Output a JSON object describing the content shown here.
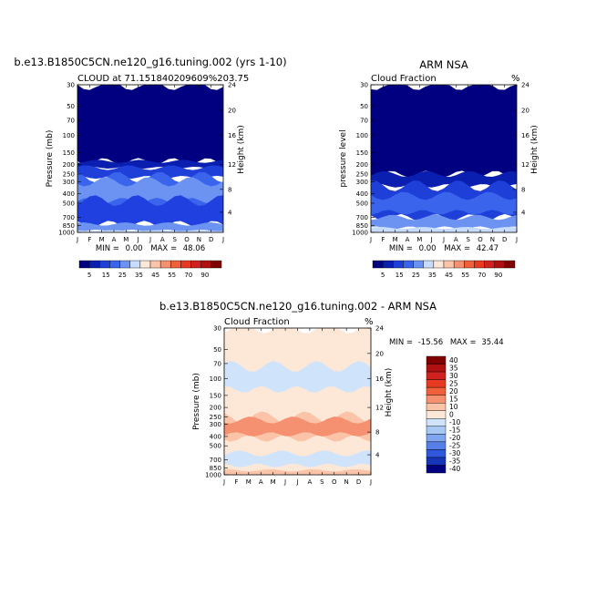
{
  "chart_data": [
    {
      "type": "heatmap",
      "title": "b.e13.B1850C5CN.ne120_g16.tuning.002 (yrs 1-10)",
      "subtitle": "CLOUD at 71.151840209609%203.75",
      "units": "",
      "xlabel": "",
      "ylabel": "Pressure (mb)",
      "ylabel_right": "Height (km)",
      "months": [
        "J",
        "F",
        "M",
        "A",
        "M",
        "J",
        "J",
        "A",
        "S",
        "O",
        "N",
        "D",
        "J"
      ],
      "pressure_ticks": [
        "30",
        "50",
        "70",
        "100",
        "150",
        "200",
        "250",
        "300",
        "400",
        "500",
        "700",
        "850",
        "1000"
      ],
      "height_ticks": [
        "24",
        "20",
        "16",
        "12",
        "8",
        "4"
      ],
      "stats": {
        "min_label": "MIN =",
        "min": "0.00",
        "max_label": "MAX =",
        "max": "48.06"
      },
      "colorbar_labels": [
        "5",
        "15",
        "25",
        "35",
        "45",
        "55",
        "70",
        "90"
      ],
      "bands": [
        {
          "p_top": 30,
          "p_bot": 185,
          "color": "#000080"
        },
        {
          "p_top": 185,
          "p_bot": 215,
          "color": "#0a1fb0"
        },
        {
          "p_top": 215,
          "p_bot": 270,
          "color": "#1e40d8"
        },
        {
          "p_top": 270,
          "p_bot": 700,
          "color": "#3b64ec"
        },
        {
          "p_top": 300,
          "p_bot": 470,
          "color": "#6d93f2"
        },
        {
          "p_top": 470,
          "p_bot": 820,
          "color": "#2040e0"
        },
        {
          "p_top": 820,
          "p_bot": 960,
          "color": "#6d93f2"
        },
        {
          "p_top": 960,
          "p_bot": 1000,
          "color": "#c8dcff"
        }
      ]
    },
    {
      "type": "heatmap",
      "title": "ARM NSA",
      "subtitle": "Cloud Fraction",
      "units": "%",
      "xlabel": "",
      "ylabel": "pressure level",
      "ylabel_right": "Height (km)",
      "months": [
        "J",
        "F",
        "M",
        "A",
        "M",
        "J",
        "J",
        "A",
        "S",
        "O",
        "N",
        "D",
        "J"
      ],
      "pressure_ticks": [
        "30",
        "50",
        "70",
        "100",
        "150",
        "200",
        "250",
        "300",
        "400",
        "500",
        "700",
        "850",
        "1000"
      ],
      "height_ticks": [
        "24",
        "20",
        "16",
        "12",
        "8",
        "4"
      ],
      "stats": {
        "min_label": "MIN =",
        "min": "0.00",
        "max_label": "MAX =",
        "max": "42.47"
      },
      "colorbar_labels": [
        "5",
        "15",
        "25",
        "35",
        "45",
        "55",
        "70",
        "90"
      ],
      "bands": [
        {
          "p_top": 30,
          "p_bot": 250,
          "color": "#000080"
        },
        {
          "p_top": 250,
          "p_bot": 330,
          "color": "#0a1fb0"
        },
        {
          "p_top": 330,
          "p_bot": 700,
          "color": "#1e40d8"
        },
        {
          "p_top": 420,
          "p_bot": 620,
          "color": "#3b64ec"
        },
        {
          "p_top": 700,
          "p_bot": 900,
          "color": "#6d93f2"
        },
        {
          "p_top": 900,
          "p_bot": 1000,
          "color": "#c8dcff"
        }
      ]
    },
    {
      "type": "heatmap",
      "title": "b.e13.B1850C5CN.ne120_g16.tuning.002 - ARM NSA",
      "subtitle": "Cloud Fraction",
      "units": "%",
      "xlabel": "",
      "ylabel": "Pressure (mb)",
      "ylabel_right": "Height (km)",
      "months": [
        "J",
        "F",
        "M",
        "A",
        "M",
        "J",
        "J",
        "A",
        "S",
        "O",
        "N",
        "D",
        "J"
      ],
      "pressure_ticks": [
        "30",
        "50",
        "70",
        "100",
        "150",
        "200",
        "250",
        "300",
        "400",
        "500",
        "700",
        "850",
        "1000"
      ],
      "height_ticks": [
        "24",
        "20",
        "16",
        "12",
        "8",
        "4"
      ],
      "stats": {
        "min_label": "MIN =",
        "min": "-15.56",
        "max_label": "MAX =",
        "max": "35.44"
      },
      "colorbar_labels": [
        "40",
        "35",
        "30",
        "25",
        "20",
        "15",
        "10",
        "0",
        "-10",
        "-15",
        "-20",
        "-25",
        "-30",
        "-35",
        "-40"
      ],
      "colorbar_colors": [
        "#800000",
        "#b01010",
        "#d02020",
        "#e83a20",
        "#f0603a",
        "#f59070",
        "#fbc4a8",
        "#fde8d8",
        "#cfe4fb",
        "#a8c8f4",
        "#7fa6ee",
        "#567fe8",
        "#2f58dc",
        "#1634b8",
        "#000080"
      ],
      "bands": [
        {
          "p_top": 30,
          "p_bot": 1000,
          "color": "#fde8d8"
        },
        {
          "p_top": 75,
          "p_bot": 130,
          "color": "#cfe4fb"
        },
        {
          "p_top": 250,
          "p_bot": 420,
          "color": "#fbc4a8"
        },
        {
          "p_top": 270,
          "p_bot": 380,
          "color": "#f59070"
        },
        {
          "p_top": 600,
          "p_bot": 800,
          "color": "#cfe4fb"
        },
        {
          "p_top": 900,
          "p_bot": 1000,
          "color": "#fbc4a8"
        }
      ]
    }
  ],
  "colors": {
    "seq_scale": [
      "#000080",
      "#0a1fb0",
      "#1e40d8",
      "#3b64ec",
      "#6d93f2",
      "#c8dcff",
      "#fde8d8",
      "#fbc4a8",
      "#f59070",
      "#f0603a",
      "#e83a20",
      "#d02020",
      "#b01010",
      "#800000"
    ]
  }
}
